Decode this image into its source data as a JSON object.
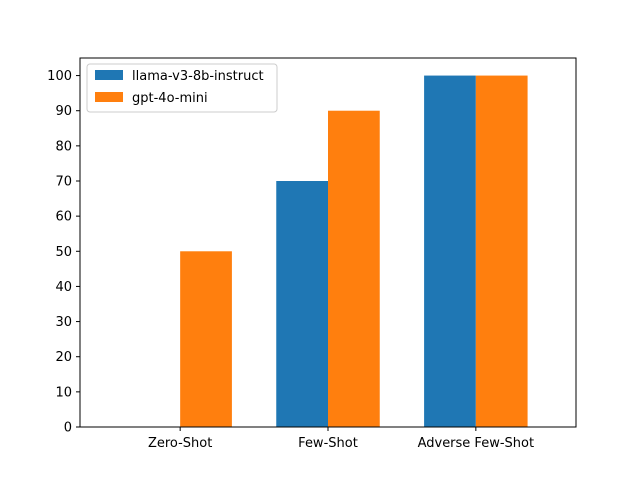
{
  "chart_data": {
    "type": "bar",
    "title": "",
    "xlabel": "",
    "ylabel": "",
    "categories": [
      "Zero-Shot",
      "Few-Shot",
      "Adverse Few-Shot"
    ],
    "series": [
      {
        "name": "llama-v3-8b-instruct",
        "color": "#1f77b4",
        "values": [
          0,
          70,
          100
        ]
      },
      {
        "name": "gpt-4o-mini",
        "color": "#ff7f0e",
        "values": [
          50,
          90,
          100
        ]
      }
    ],
    "ylim": [
      0,
      105
    ],
    "yticks": [
      0,
      10,
      20,
      30,
      40,
      50,
      60,
      70,
      80,
      90,
      100
    ],
    "grid": false,
    "legend_position": "top-left"
  }
}
